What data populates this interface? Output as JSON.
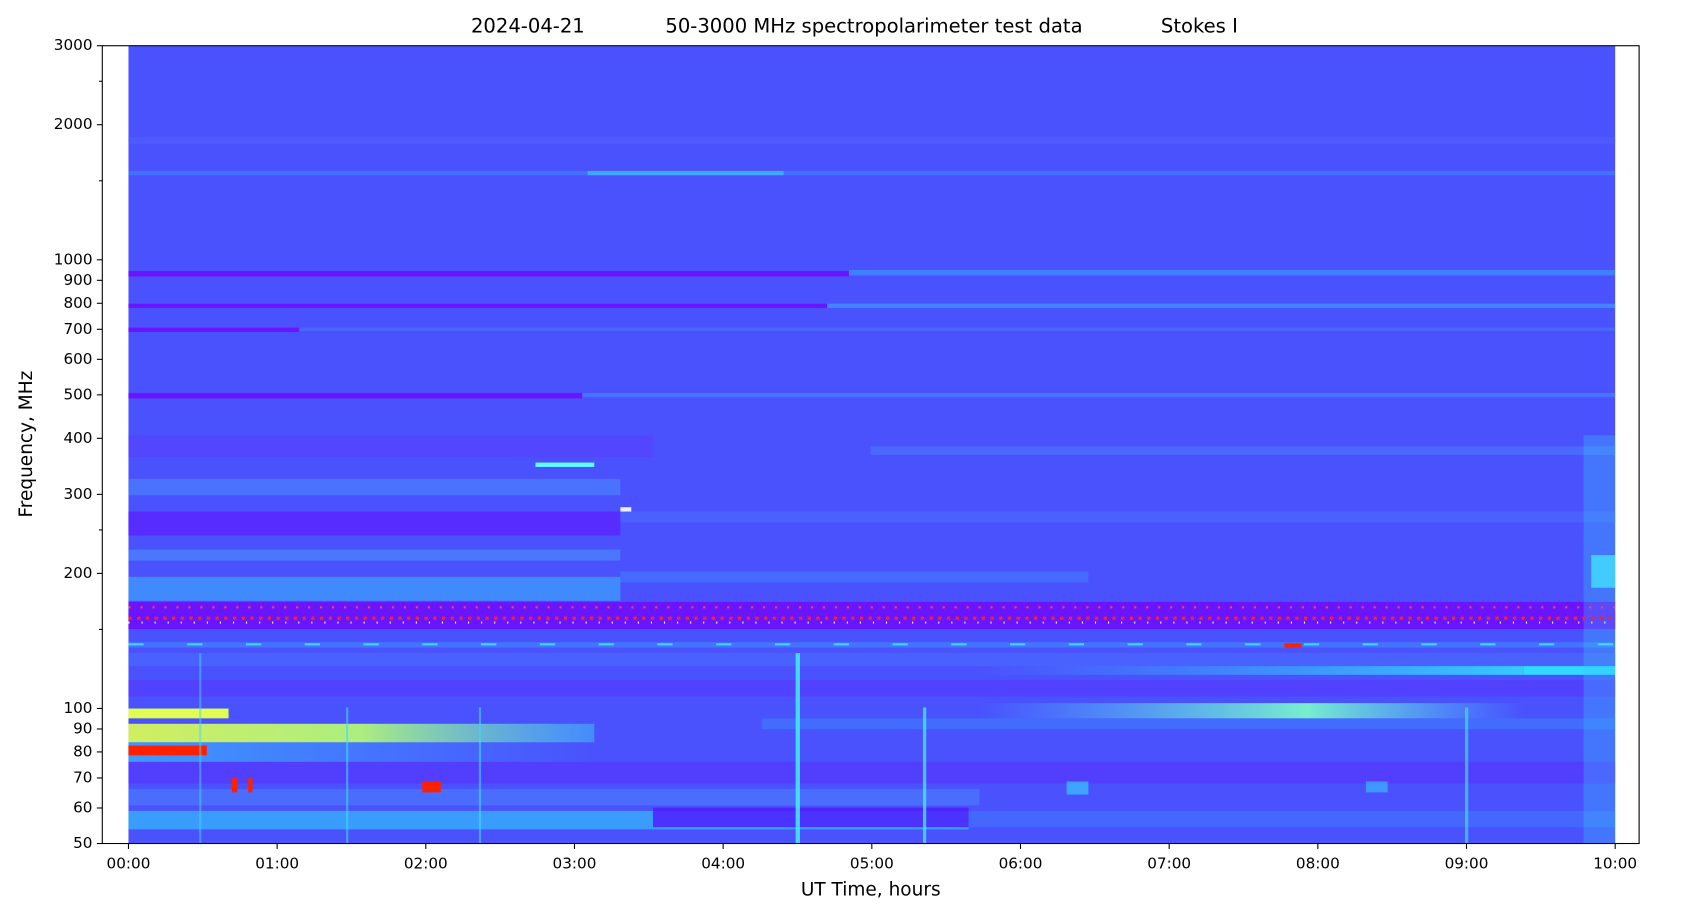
{
  "chart_data": {
    "type": "spectrogram",
    "title_parts": [
      "2024-04-21",
      "50-3000 MHz spectropolarimeter test data",
      "Stokes I"
    ],
    "x_label": "UT Time, hours",
    "y_label": "Frequency, MHz",
    "xlim": [
      -0.176,
      10.161
    ],
    "xticks": [
      {
        "value": 0,
        "label": "00:00"
      },
      {
        "value": 1,
        "label": "01:00"
      },
      {
        "value": 2,
        "label": "02:00"
      },
      {
        "value": 3,
        "label": "03:00"
      },
      {
        "value": 4,
        "label": "04:00"
      },
      {
        "value": 5,
        "label": "05:00"
      },
      {
        "value": 6,
        "label": "06:00"
      },
      {
        "value": 7,
        "label": "07:00"
      },
      {
        "value": 8,
        "label": "08:00"
      },
      {
        "value": 9,
        "label": "09:00"
      },
      {
        "value": 10,
        "label": "10:00"
      }
    ],
    "ylim": [
      50,
      3000
    ],
    "yscale": "log",
    "yticks": [
      50,
      60,
      70,
      80,
      90,
      100,
      200,
      300,
      400,
      500,
      600,
      700,
      800,
      900,
      1000,
      2000,
      3000
    ],
    "yminorticks": [
      150,
      250,
      1500,
      2500
    ]
  }
}
